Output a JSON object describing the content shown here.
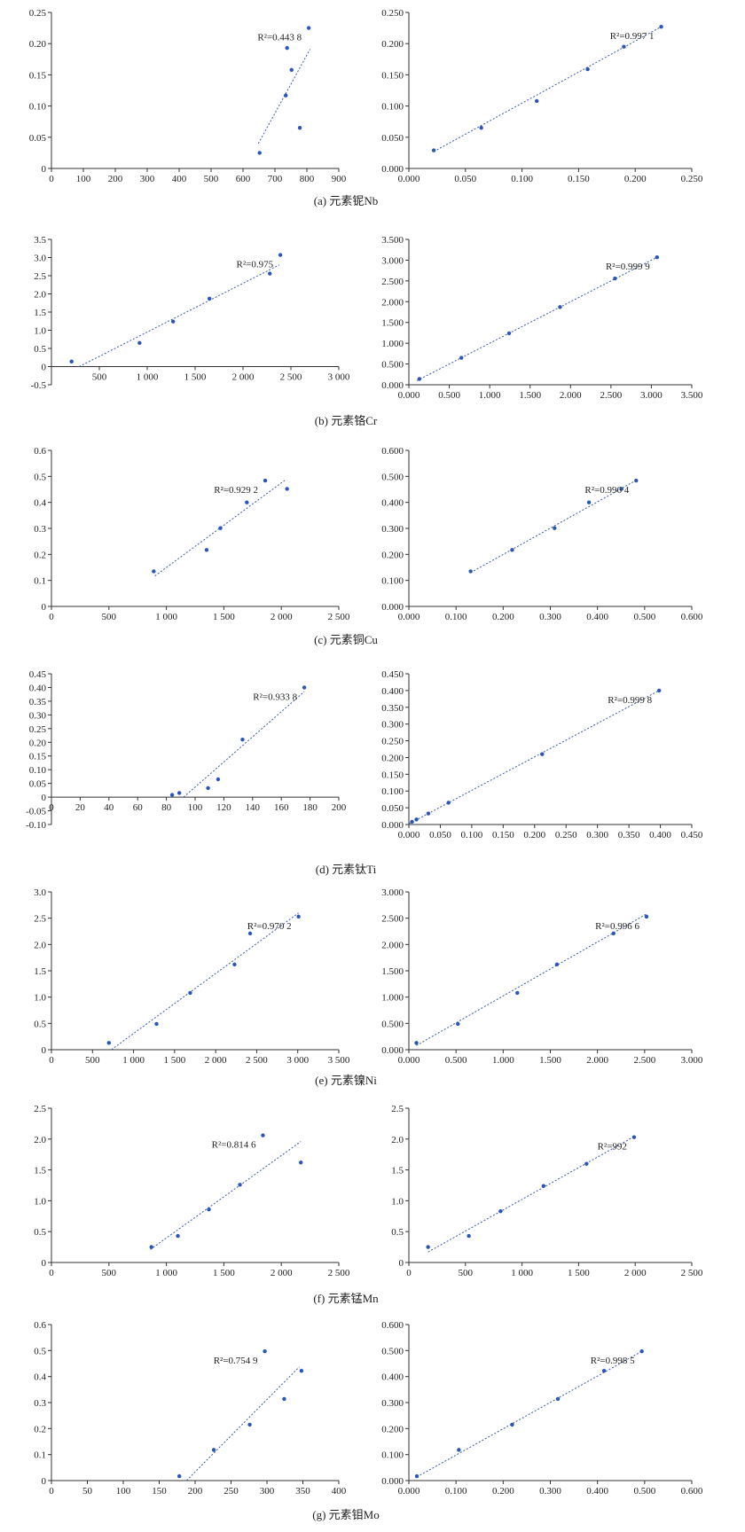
{
  "chart_data": [
    {
      "type": "scatter",
      "row": 0,
      "side": "left",
      "xlim": [
        0,
        900
      ],
      "ylim": [
        0,
        0.25
      ],
      "xticks": [
        "0",
        "100",
        "200",
        "300",
        "400",
        "500",
        "600",
        "700",
        "800",
        "900"
      ],
      "yticks": [
        "0",
        "0.05",
        "0.10",
        "0.15",
        "0.20",
        "0.25"
      ],
      "points": [
        [
          652,
          0.025
        ],
        [
          734,
          0.117
        ],
        [
          738,
          0.193
        ],
        [
          752,
          0.158
        ],
        [
          778,
          0.065
        ],
        [
          806,
          0.225
        ]
      ],
      "trendline": [
        [
          648,
          0.04
        ],
        [
          810,
          0.191
        ]
      ],
      "r2_label": "R²=0.443 8"
    },
    {
      "type": "scatter",
      "row": 0,
      "side": "right",
      "xlim": [
        0,
        0.25
      ],
      "ylim": [
        0,
        0.25
      ],
      "xticks": [
        "0.000",
        "0.050",
        "0.100",
        "0.150",
        "0.200",
        "0.250"
      ],
      "yticks": [
        "0.000",
        "0.050",
        "0.100",
        "0.150",
        "0.200",
        "0.250"
      ],
      "points": [
        [
          0.022,
          0.029
        ],
        [
          0.064,
          0.065
        ],
        [
          0.113,
          0.108
        ],
        [
          0.158,
          0.159
        ],
        [
          0.19,
          0.195
        ],
        [
          0.223,
          0.227
        ]
      ],
      "trendline": [
        [
          0.022,
          0.027
        ],
        [
          0.224,
          0.228
        ]
      ],
      "r2_label": "R²=0.997 1"
    },
    {
      "type": "scatter",
      "row": 1,
      "side": "left",
      "xlim": [
        0,
        3000
      ],
      "ylim": [
        -0.5,
        3.5
      ],
      "xticks": [
        "",
        "500",
        "1 000",
        "1 500",
        "2 000",
        "2 500",
        "3 000"
      ],
      "yticks": [
        "-0.5",
        "0",
        "0.5",
        "1.0",
        "1.5",
        "2.0",
        "2.5",
        "3.0",
        "3.5"
      ],
      "points": [
        [
          210,
          0.14
        ],
        [
          920,
          0.65
        ],
        [
          1270,
          1.24
        ],
        [
          1650,
          1.87
        ],
        [
          2280,
          2.56
        ],
        [
          2390,
          3.07
        ]
      ],
      "trendline": [
        [
          290,
          0.0
        ],
        [
          2380,
          2.8
        ]
      ],
      "r2_label": "R²=0.975"
    },
    {
      "type": "scatter",
      "row": 1,
      "side": "right",
      "xlim": [
        0,
        3.5
      ],
      "ylim": [
        0,
        3.5
      ],
      "xticks": [
        "0.000",
        "0.500",
        "1.000",
        "1.500",
        "2.000",
        "2.500",
        "3.000",
        "3.500"
      ],
      "yticks": [
        "0.000",
        "0.500",
        "1.000",
        "1.500",
        "2.000",
        "2.500",
        "3.000",
        "3.500"
      ],
      "points": [
        [
          0.13,
          0.14
        ],
        [
          0.65,
          0.65
        ],
        [
          1.24,
          1.24
        ],
        [
          1.87,
          1.87
        ],
        [
          2.55,
          2.56
        ],
        [
          3.07,
          3.07
        ]
      ],
      "trendline": [
        [
          0.1,
          0.1
        ],
        [
          3.07,
          3.07
        ]
      ],
      "r2_label": "R²=0.999 9"
    },
    {
      "type": "scatter",
      "row": 2,
      "side": "left",
      "xlim": [
        0,
        2500
      ],
      "ylim": [
        0,
        0.6
      ],
      "xticks": [
        "0",
        "500",
        "1 000",
        "1 500",
        "2 000",
        "2 500"
      ],
      "yticks": [
        "0",
        "0.1",
        "0.2",
        "0.3",
        "0.4",
        "0.5",
        "0.6"
      ],
      "points": [
        [
          890,
          0.135
        ],
        [
          1350,
          0.217
        ],
        [
          1470,
          0.301
        ],
        [
          1700,
          0.4
        ],
        [
          1860,
          0.484
        ],
        [
          2050,
          0.452
        ]
      ],
      "trendline": [
        [
          900,
          0.117
        ],
        [
          2040,
          0.488
        ]
      ],
      "r2_label": "R²=0.929 2"
    },
    {
      "type": "scatter",
      "row": 2,
      "side": "right",
      "xlim": [
        0,
        0.6
      ],
      "ylim": [
        0,
        0.6
      ],
      "xticks": [
        "0.000",
        "0.100",
        "0.200",
        "0.300",
        "0.400",
        "0.500",
        "0.600"
      ],
      "yticks": [
        "0.000",
        "0.100",
        "0.200",
        "0.300",
        "0.400",
        "0.500",
        "0.600"
      ],
      "points": [
        [
          0.131,
          0.135
        ],
        [
          0.219,
          0.217
        ],
        [
          0.309,
          0.301
        ],
        [
          0.382,
          0.4
        ],
        [
          0.451,
          0.452
        ],
        [
          0.482,
          0.484
        ]
      ],
      "trendline": [
        [
          0.131,
          0.13
        ],
        [
          0.482,
          0.485
        ]
      ],
      "r2_label": "R²=0.996 4"
    },
    {
      "type": "scatter",
      "row": 3,
      "side": "left",
      "xlim": [
        0,
        200
      ],
      "ylim": [
        -0.1,
        0.45
      ],
      "xticks": [
        "0",
        "20",
        "40",
        "60",
        "80",
        "100",
        "120",
        "140",
        "160",
        "180",
        "200"
      ],
      "yticks": [
        "-0.10",
        "-0.05",
        "0",
        "0.05",
        "0.10",
        "0.15",
        "0.20",
        "0.25",
        "0.30",
        "0.35",
        "0.40",
        "0.45"
      ],
      "points": [
        [
          84,
          0.008
        ],
        [
          89,
          0.015
        ],
        [
          109,
          0.033
        ],
        [
          116,
          0.065
        ],
        [
          133,
          0.21
        ],
        [
          176,
          0.4
        ]
      ],
      "trendline": [
        [
          92,
          0.0
        ],
        [
          176,
          0.385
        ]
      ],
      "r2_label": "R²=0.933 8"
    },
    {
      "type": "scatter",
      "row": 3,
      "side": "right",
      "xlim": [
        0,
        0.45
      ],
      "ylim": [
        0,
        0.45
      ],
      "xticks": [
        "0.000",
        "0.050",
        "0.100",
        "0.150",
        "0.200",
        "0.250",
        "0.300",
        "0.350",
        "0.400",
        "0.450"
      ],
      "yticks": [
        "0.000",
        "0.050",
        "0.100",
        "0.150",
        "0.200",
        "0.250",
        "0.300",
        "0.350",
        "0.400",
        "0.450"
      ],
      "points": [
        [
          0.005,
          0.008
        ],
        [
          0.012,
          0.015
        ],
        [
          0.031,
          0.033
        ],
        [
          0.063,
          0.065
        ],
        [
          0.212,
          0.21
        ],
        [
          0.398,
          0.4
        ]
      ],
      "trendline": [
        [
          0.0,
          0.002
        ],
        [
          0.398,
          0.4
        ]
      ],
      "r2_label": "R²=0.999 8"
    },
    {
      "type": "scatter",
      "row": 4,
      "side": "left",
      "xlim": [
        0,
        3500
      ],
      "ylim": [
        0,
        3.0
      ],
      "xticks": [
        "0",
        "500",
        "1 000",
        "1 500",
        "2 000",
        "2 500",
        "3 000",
        "3 500"
      ],
      "yticks": [
        "0",
        "0.5",
        "1.0",
        "1.5",
        "2.0",
        "2.5",
        "3.0"
      ],
      "points": [
        [
          700,
          0.13
        ],
        [
          1280,
          0.49
        ],
        [
          1690,
          1.08
        ],
        [
          2230,
          1.62
        ],
        [
          2420,
          2.21
        ],
        [
          3010,
          2.53
        ]
      ],
      "trendline": [
        [
          730,
          0.0
        ],
        [
          3010,
          2.6
        ]
      ],
      "r2_label": "R²=0.970 2"
    },
    {
      "type": "scatter",
      "row": 4,
      "side": "right",
      "xlim": [
        0,
        3.0
      ],
      "ylim": [
        0,
        3.0
      ],
      "xticks": [
        "0.000",
        "0.500",
        "1.000",
        "1.500",
        "2.000",
        "2.500",
        "3.000"
      ],
      "yticks": [
        "0.000",
        "0.500",
        "1.000",
        "1.500",
        "2.000",
        "2.500",
        "3.000"
      ],
      "points": [
        [
          0.08,
          0.13
        ],
        [
          0.52,
          0.49
        ],
        [
          1.15,
          1.08
        ],
        [
          1.57,
          1.62
        ],
        [
          2.17,
          2.21
        ],
        [
          2.52,
          2.53
        ]
      ],
      "trendline": [
        [
          0.08,
          0.08
        ],
        [
          2.52,
          2.58
        ]
      ],
      "r2_label": "R²=0.996 6"
    },
    {
      "type": "scatter",
      "row": 5,
      "side": "left",
      "xlim": [
        0,
        2500
      ],
      "ylim": [
        0,
        2.5
      ],
      "xticks": [
        "0",
        "500",
        "1 000",
        "1 500",
        "2 000",
        "2 500"
      ],
      "yticks": [
        "0",
        "0.5",
        "1.0",
        "1.5",
        "2.0",
        "2.5"
      ],
      "points": [
        [
          870,
          0.25
        ],
        [
          1100,
          0.43
        ],
        [
          1370,
          0.86
        ],
        [
          1640,
          1.26
        ],
        [
          1840,
          2.06
        ],
        [
          2170,
          1.62
        ]
      ],
      "trendline": [
        [
          860,
          0.21
        ],
        [
          2170,
          1.96
        ]
      ],
      "r2_label": "R²=0.814 6"
    },
    {
      "type": "scatter",
      "row": 5,
      "side": "right",
      "xlim": [
        0,
        2500
      ],
      "ylim": [
        0,
        2.5
      ],
      "xticks": [
        "0",
        "500",
        "1 000",
        "1 500",
        "2 000",
        "2 500"
      ],
      "yticks": [
        "0",
        "0.5",
        "1.0",
        "1.5",
        "2.0",
        "2.5"
      ],
      "points": [
        [
          170,
          0.25
        ],
        [
          530,
          0.43
        ],
        [
          810,
          0.83
        ],
        [
          1190,
          1.24
        ],
        [
          1570,
          1.6
        ],
        [
          1990,
          2.03
        ]
      ],
      "trendline": [
        [
          170,
          0.17
        ],
        [
          1990,
          2.04
        ]
      ],
      "r2_label": "R²=992"
    },
    {
      "type": "scatter",
      "row": 6,
      "side": "left",
      "xlim": [
        0,
        400
      ],
      "ylim": [
        0,
        0.6
      ],
      "xticks": [
        "0",
        "50",
        "100",
        "150",
        "200",
        "250",
        "300",
        "350",
        "400"
      ],
      "yticks": [
        "0",
        "0.1",
        "0.2",
        "0.3",
        "0.4",
        "0.5",
        "0.6"
      ],
      "points": [
        [
          178,
          0.017
        ],
        [
          226,
          0.118
        ],
        [
          276,
          0.215
        ],
        [
          297,
          0.497
        ],
        [
          324,
          0.314
        ],
        [
          348,
          0.422
        ]
      ],
      "trendline": [
        [
          188,
          0.0
        ],
        [
          345,
          0.437
        ]
      ],
      "r2_label": "R²=0.754 9"
    },
    {
      "type": "scatter",
      "row": 6,
      "side": "right",
      "xlim": [
        0,
        0.6
      ],
      "ylim": [
        0,
        0.6
      ],
      "xticks": [
        "0.000",
        "0.100",
        "0.200",
        "0.300",
        "0.400",
        "0.500",
        "0.600"
      ],
      "yticks": [
        "0.000",
        "0.100",
        "0.200",
        "0.300",
        "0.400",
        "0.500",
        "0.600"
      ],
      "points": [
        [
          0.017,
          0.017
        ],
        [
          0.106,
          0.118
        ],
        [
          0.219,
          0.215
        ],
        [
          0.316,
          0.314
        ],
        [
          0.414,
          0.422
        ],
        [
          0.494,
          0.497
        ]
      ],
      "trendline": [
        [
          0.017,
          0.014
        ],
        [
          0.494,
          0.497
        ]
      ],
      "r2_label": "R²=0.998 5"
    }
  ],
  "captions": [
    "(a) 元素铌Nb",
    "(b) 元素铬Cr",
    "(c) 元素铜Cu",
    "(d) 元素钛Ti",
    "(e) 元素镍Ni",
    "(f) 元素锰Mn",
    "(g) 元素钼Mo"
  ]
}
